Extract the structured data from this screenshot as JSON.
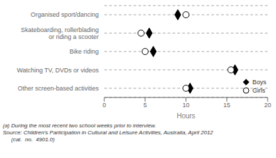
{
  "chart_data": {
    "type": "scatter",
    "categories": [
      "Organised sport/dancing",
      "Skateboarding, rollerblading\nor riding a scooter",
      "Bike riding",
      "Watching TV, DVDs or videos",
      "Other screen-based activities"
    ],
    "series": [
      {
        "name": "Boys",
        "color": "black",
        "marker": "diamond",
        "values": [
          9.0,
          5.5,
          6.0,
          16.0,
          10.5
        ]
      },
      {
        "name": "Girls",
        "color": "white",
        "marker": "circle",
        "values": [
          10.0,
          4.5,
          5.0,
          15.5,
          10.0
        ]
      }
    ],
    "xlabel": "Hours",
    "xlim": [
      0,
      20
    ],
    "xticks": [
      0,
      5,
      10,
      15,
      20
    ],
    "grid": true,
    "legend": "lower right",
    "annotations": [
      "(a) During the most recent two school weeks prior to interview.",
      "Source: Children's Participation in Cultural and Leisure Activities, Australia, April 2012",
      "(cat.  no.  4901.0)"
    ]
  }
}
